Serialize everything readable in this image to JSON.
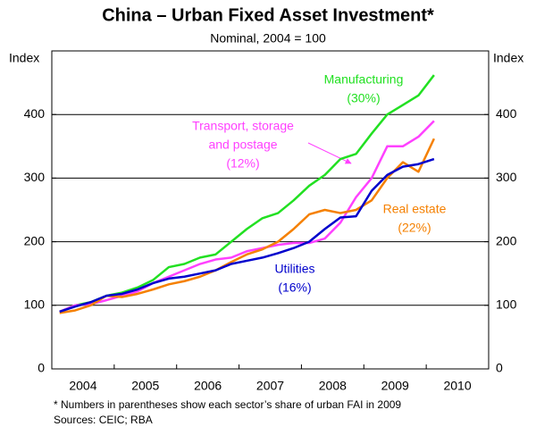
{
  "chart_data": {
    "type": "line",
    "title": "China – Urban Fixed Asset Investment*",
    "subtitle": "Nominal, 2004 = 100",
    "y_label": "Index",
    "y2_label": "Index",
    "x": [
      2004.125,
      2004.375,
      2004.625,
      2004.875,
      2005.125,
      2005.375,
      2005.625,
      2005.875,
      2006.125,
      2006.375,
      2006.625,
      2006.875,
      2007.125,
      2007.375,
      2007.625,
      2007.875,
      2008.125,
      2008.375,
      2008.625,
      2008.875,
      2009.125,
      2009.375,
      2009.625,
      2009.875,
      2010.125
    ],
    "xlim": [
      2004,
      2011
    ],
    "xticks": [
      2004,
      2005,
      2006,
      2007,
      2008,
      2009,
      2010,
      2011
    ],
    "year_labels": [
      "2004",
      "2005",
      "2006",
      "2007",
      "2008",
      "2009",
      "2010"
    ],
    "ylim": [
      0,
      500
    ],
    "yticks": [
      0,
      100,
      200,
      300,
      400
    ],
    "y2lim": [
      0,
      500
    ],
    "y2ticks": [
      0,
      100,
      200,
      300,
      400
    ],
    "grid": true,
    "series": [
      {
        "label_lines": [
          "Manufacturing"
        ],
        "share": "(30%)",
        "color": "#22e022",
        "values": [
          90,
          100,
          105,
          115,
          120,
          128,
          140,
          160,
          165,
          175,
          180,
          200,
          220,
          237,
          245,
          265,
          288,
          305,
          330,
          338,
          370,
          400,
          415,
          430,
          462
        ]
      },
      {
        "label_lines": [
          "Transport, storage",
          "and postage"
        ],
        "share": "(12%)",
        "color": "#ff40ff",
        "values": [
          90,
          100,
          102,
          108,
          115,
          122,
          135,
          145,
          155,
          165,
          172,
          175,
          185,
          190,
          195,
          198,
          198,
          205,
          230,
          270,
          300,
          350,
          350,
          365,
          390
        ]
      },
      {
        "label_lines": [
          "Real estate"
        ],
        "share": "(22%)",
        "color": "#f58000",
        "values": [
          88,
          92,
          100,
          115,
          113,
          118,
          125,
          133,
          138,
          145,
          155,
          168,
          180,
          188,
          200,
          220,
          243,
          250,
          245,
          250,
          265,
          300,
          325,
          310,
          362
        ]
      },
      {
        "label_lines": [
          "Utilities"
        ],
        "share": "(16%)",
        "color": "#0000cc",
        "values": [
          90,
          98,
          105,
          115,
          118,
          125,
          135,
          142,
          145,
          150,
          155,
          165,
          170,
          175,
          182,
          190,
          200,
          220,
          238,
          240,
          280,
          305,
          318,
          322,
          330
        ]
      }
    ],
    "footnotes": [
      "*   Numbers in parentheses show each sector’s share of urban FAI in 2009",
      "Sources: CEIC; RBA"
    ]
  }
}
